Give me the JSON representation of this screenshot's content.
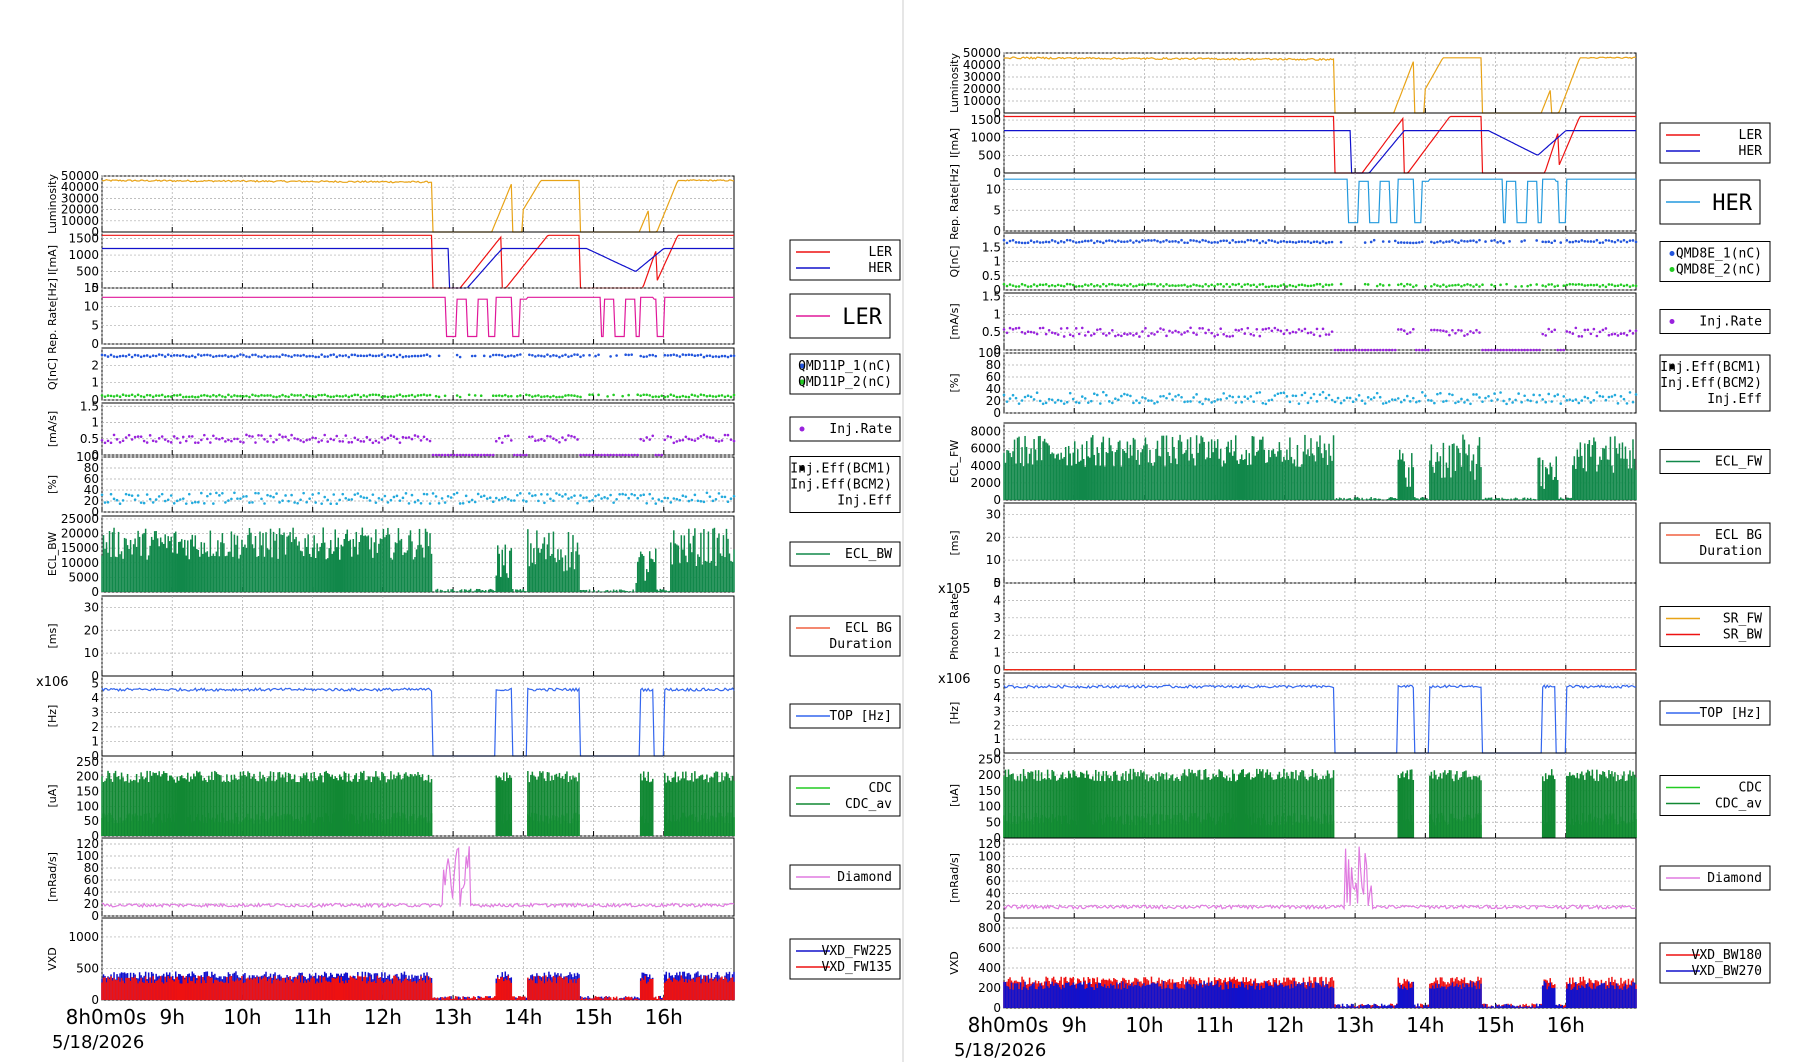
{
  "chart_data": [
    {
      "type": "line",
      "title": "",
      "date": "5/18/2026",
      "time_axis": {
        "range": [
          "08:00",
          "17:00"
        ],
        "tick_labels": [
          "8h0m0s",
          "9h",
          "10h",
          "11h",
          "12h",
          "13h",
          "14h",
          "15h",
          "16h"
        ]
      },
      "panels": [
        {
          "ylabel": "Luminosity",
          "ylim": [
            0,
            50000
          ],
          "yticks": [
            "0",
            "10000",
            "20000",
            "30000",
            "40000",
            "50000"
          ],
          "legend": [],
          "series": [
            {
              "name": "Luminosity",
              "color": "#e8a317",
              "style": "line"
            }
          ]
        },
        {
          "ylabel": "I[mA]",
          "ylim": [
            0,
            1700
          ],
          "yticks": [
            "0",
            "500",
            "1000",
            "1500"
          ],
          "legend": [
            {
              "label": "LER",
              "color": "#ee1111"
            },
            {
              "label": "HER",
              "color": "#1111cc"
            }
          ],
          "series": [
            {
              "name": "LER",
              "color": "#ee1111",
              "style": "line"
            },
            {
              "name": "HER",
              "color": "#1111cc",
              "style": "line"
            }
          ]
        },
        {
          "ylabel": "Rep. Rate[Hz]",
          "ylim": [
            0,
            15
          ],
          "yticks": [
            "0",
            "5",
            "10",
            "15"
          ],
          "legend": [
            {
              "label": "LER",
              "color": "#e0189a",
              "big": true
            }
          ],
          "series": [
            {
              "name": "LER",
              "color": "#e0189a",
              "style": "step"
            }
          ]
        },
        {
          "ylabel": "Q[nC]",
          "ylim": [
            0,
            3
          ],
          "yticks": [
            "0",
            "1",
            "2"
          ],
          "legend": [
            {
              "label": "QMD11P_1(nC)",
              "color": "#2255dd",
              "marker": "dot"
            },
            {
              "label": "QMD11P_2(nC)",
              "color": "#22cc22",
              "marker": "dot"
            }
          ],
          "series": [
            {
              "name": "QMD11P_1(nC)",
              "color": "#2255dd",
              "style": "dots"
            },
            {
              "name": "QMD11P_2(nC)",
              "color": "#22cc22",
              "style": "dots"
            }
          ]
        },
        {
          "ylabel": "[mA/s]",
          "ylim": [
            0,
            1.6
          ],
          "yticks": [
            "0",
            "0.5",
            "1",
            "1.5"
          ],
          "legend": [
            {
              "label": "Inj.Rate",
              "color": "#9922dd",
              "marker": "dot"
            }
          ],
          "series": [
            {
              "name": "Inj.Rate",
              "color": "#9922dd",
              "style": "dots"
            }
          ]
        },
        {
          "ylabel": "[%]",
          "ylim": [
            0,
            100
          ],
          "yticks": [
            "0",
            "20",
            "40",
            "60",
            "80",
            "100"
          ],
          "legend": [
            {
              "label": "Inj.Eff(BCM1)",
              "color": "#000000",
              "marker": "dot"
            },
            {
              "label": "Inj.Eff(BCM2)",
              "color": "#000000",
              "marker": "none"
            },
            {
              "label": "Inj.Eff",
              "color": "#000000",
              "marker": "none"
            }
          ],
          "series": [
            {
              "name": "Inj.Eff",
              "color": "#22aadd",
              "style": "dots"
            }
          ]
        },
        {
          "ylabel": "ECL_BW",
          "ylim": [
            0,
            26000
          ],
          "yticks": [
            "0",
            "5000",
            "10000",
            "15000",
            "20000",
            "25000"
          ],
          "legend": [
            {
              "label": "ECL_BW",
              "color": "#11884a"
            }
          ],
          "series": [
            {
              "name": "ECL_BW",
              "color": "#11884a",
              "style": "fill"
            }
          ]
        },
        {
          "ylabel": "[ms]",
          "ylim": [
            0,
            35
          ],
          "yticks": [
            "0",
            "10",
            "20",
            "30"
          ],
          "legend": [
            {
              "label": "ECL BG",
              "color": "#f06040"
            },
            {
              "label": "Duration",
              "color": "none"
            }
          ],
          "series": [
            {
              "name": "ECL BG Duration",
              "color": "#f06040",
              "style": "spiky"
            }
          ]
        },
        {
          "ylabel": "[Hz]",
          "ylim": [
            0,
            5.5
          ],
          "yticks": [
            "0",
            "1",
            "2",
            "3",
            "4",
            "5"
          ],
          "exponent": "x10^6",
          "legend": [
            {
              "label": "TOP [Hz]",
              "color": "#3366ee"
            }
          ],
          "series": [
            {
              "name": "TOP [Hz]",
              "color": "#3366ee",
              "style": "line"
            }
          ]
        },
        {
          "ylabel": "[uA]",
          "ylim": [
            0,
            270
          ],
          "yticks": [
            "0",
            "50",
            "100",
            "150",
            "200",
            "250"
          ],
          "legend": [
            {
              "label": "CDC",
              "color": "#22cc22"
            },
            {
              "label": "CDC_av",
              "color": "#118833"
            }
          ],
          "series": [
            {
              "name": "CDC",
              "color": "#22cc22",
              "style": "fill"
            },
            {
              "name": "CDC_av",
              "color": "#118833",
              "style": "fill"
            }
          ]
        },
        {
          "ylabel": "[mRad/s]",
          "ylim": [
            0,
            130
          ],
          "yticks": [
            "0",
            "20",
            "40",
            "60",
            "80",
            "100",
            "120"
          ],
          "legend": [
            {
              "label": "Diamond",
              "color": "#e07ae0"
            }
          ],
          "series": [
            {
              "name": "Diamond",
              "color": "#e07ae0",
              "style": "line"
            }
          ]
        },
        {
          "ylabel": "VXD",
          "ylim": [
            0,
            1300
          ],
          "yticks": [
            "0",
            "500",
            "1000"
          ],
          "legend": [
            {
              "label": "VXD_FW225",
              "color": "#1111cc"
            },
            {
              "label": "VXD_FW135",
              "color": "#ee1111"
            }
          ],
          "series": [
            {
              "name": "VXD_FW225",
              "color": "#1111cc",
              "style": "fill"
            },
            {
              "name": "VXD_FW135",
              "color": "#ee1111",
              "style": "fill"
            }
          ]
        }
      ]
    },
    {
      "type": "line",
      "title": "",
      "date": "5/18/2026",
      "time_axis": {
        "range": [
          "08:00",
          "17:00"
        ],
        "tick_labels": [
          "8h0m0s",
          "9h",
          "10h",
          "11h",
          "12h",
          "13h",
          "14h",
          "15h",
          "16h"
        ]
      },
      "panels": [
        {
          "ylabel": "Luminosity",
          "ylim": [
            0,
            50000
          ],
          "yticks": [
            "0",
            "10000",
            "20000",
            "30000",
            "40000",
            "50000"
          ],
          "legend": [],
          "series": [
            {
              "name": "Luminosity",
              "color": "#e8a317",
              "style": "line"
            }
          ]
        },
        {
          "ylabel": "I[mA]",
          "ylim": [
            0,
            1700
          ],
          "yticks": [
            "0",
            "500",
            "1000",
            "1500"
          ],
          "legend": [
            {
              "label": "LER",
              "color": "#ee1111"
            },
            {
              "label": "HER",
              "color": "#1111cc"
            }
          ],
          "series": [
            {
              "name": "LER",
              "color": "#ee1111",
              "style": "line"
            },
            {
              "name": "HER",
              "color": "#1111cc",
              "style": "line"
            }
          ]
        },
        {
          "ylabel": "Rep. Rate[Hz]",
          "ylim": [
            0,
            14
          ],
          "yticks": [
            "0",
            "5",
            "10"
          ],
          "legend": [
            {
              "label": "HER",
              "color": "#2299dd",
              "big": true
            }
          ],
          "series": [
            {
              "name": "HER",
              "color": "#2299dd",
              "style": "step"
            }
          ]
        },
        {
          "ylabel": "Q[nC]",
          "ylim": [
            0,
            2
          ],
          "yticks": [
            "0",
            "0.5",
            "1",
            "1.5"
          ],
          "legend": [
            {
              "label": "QMD8E_1(nC)",
              "color": "#2255dd",
              "marker": "dot"
            },
            {
              "label": "QMD8E_2(nC)",
              "color": "#22cc22",
              "marker": "dot"
            }
          ],
          "series": [
            {
              "name": "QMD8E_1(nC)",
              "color": "#2255dd",
              "style": "dots"
            },
            {
              "name": "QMD8E_2(nC)",
              "color": "#22cc22",
              "style": "dots"
            }
          ]
        },
        {
          "ylabel": "[mA/s]",
          "ylim": [
            0,
            1.6
          ],
          "yticks": [
            "0",
            "0.5",
            "1",
            "1.5"
          ],
          "legend": [
            {
              "label": "Inj.Rate",
              "color": "#9922dd",
              "marker": "dot"
            }
          ],
          "series": [
            {
              "name": "Inj.Rate",
              "color": "#9922dd",
              "style": "dots"
            }
          ]
        },
        {
          "ylabel": "[%]",
          "ylim": [
            0,
            100
          ],
          "yticks": [
            "0",
            "20",
            "40",
            "60",
            "80",
            "100"
          ],
          "legend": [
            {
              "label": "Inj.Eff(BCM1)",
              "color": "#000000",
              "marker": "dot"
            },
            {
              "label": "Inj.Eff(BCM2)",
              "color": "#000000",
              "marker": "none"
            },
            {
              "label": "Inj.Eff",
              "color": "#000000",
              "marker": "none"
            }
          ],
          "series": [
            {
              "name": "Inj.Eff",
              "color": "#22aadd",
              "style": "dots"
            }
          ]
        },
        {
          "ylabel": "ECL_FW",
          "ylim": [
            0,
            9000
          ],
          "yticks": [
            "0",
            "2000",
            "4000",
            "6000",
            "8000"
          ],
          "legend": [
            {
              "label": "ECL_FW",
              "color": "#11884a"
            }
          ],
          "series": [
            {
              "name": "ECL_FW",
              "color": "#11884a",
              "style": "fill"
            }
          ]
        },
        {
          "ylabel": "[ms]",
          "ylim": [
            0,
            35
          ],
          "yticks": [
            "0",
            "10",
            "20",
            "30"
          ],
          "legend": [
            {
              "label": "ECL BG",
              "color": "#f06040"
            },
            {
              "label": "Duration",
              "color": "none"
            }
          ],
          "series": [
            {
              "name": "ECL BG Duration",
              "color": "#f06040",
              "style": "spiky"
            }
          ]
        },
        {
          "ylabel": "Photon Rate",
          "ylim": [
            0,
            5
          ],
          "yticks": [
            "0",
            "1",
            "2",
            "3",
            "4",
            "5"
          ],
          "exponent": "x10^5",
          "legend": [
            {
              "label": "SR_FW",
              "color": "#e8a317"
            },
            {
              "label": "SR_BW",
              "color": "#ee1111"
            }
          ],
          "series": [
            {
              "name": "SR_FW",
              "color": "#e8a317",
              "style": "flat"
            },
            {
              "name": "SR_BW",
              "color": "#ee1111",
              "style": "flat"
            }
          ]
        },
        {
          "ylabel": "[Hz]",
          "ylim": [
            0,
            5.8
          ],
          "yticks": [
            "0",
            "1",
            "2",
            "3",
            "4",
            "5"
          ],
          "exponent": "x10^6",
          "legend": [
            {
              "label": "TOP [Hz]",
              "color": "#3366ee"
            }
          ],
          "series": [
            {
              "name": "TOP [Hz]",
              "color": "#3366ee",
              "style": "line"
            }
          ]
        },
        {
          "ylabel": "[uA]",
          "ylim": [
            0,
            270
          ],
          "yticks": [
            "0",
            "50",
            "100",
            "150",
            "200",
            "250"
          ],
          "legend": [
            {
              "label": "CDC",
              "color": "#22cc22"
            },
            {
              "label": "CDC_av",
              "color": "#118833"
            }
          ],
          "series": [
            {
              "name": "CDC",
              "color": "#22cc22",
              "style": "fill"
            },
            {
              "name": "CDC_av",
              "color": "#118833",
              "style": "fill"
            }
          ]
        },
        {
          "ylabel": "[mRad/s]",
          "ylim": [
            0,
            130
          ],
          "yticks": [
            "0",
            "20",
            "40",
            "60",
            "80",
            "100",
            "120"
          ],
          "legend": [
            {
              "label": "Diamond",
              "color": "#e07ae0"
            }
          ],
          "series": [
            {
              "name": "Diamond",
              "color": "#e07ae0",
              "style": "line"
            }
          ]
        },
        {
          "ylabel": "VXD",
          "ylim": [
            0,
            900
          ],
          "yticks": [
            "0",
            "200",
            "400",
            "600",
            "800"
          ],
          "legend": [
            {
              "label": "VXD_BW180",
              "color": "#ee1111"
            },
            {
              "label": "VXD_BW270",
              "color": "#1111cc"
            }
          ],
          "series": [
            {
              "name": "VXD_BW180",
              "color": "#ee1111",
              "style": "fill"
            },
            {
              "name": "VXD_BW270",
              "color": "#1111cc",
              "style": "fill"
            }
          ]
        }
      ]
    }
  ]
}
